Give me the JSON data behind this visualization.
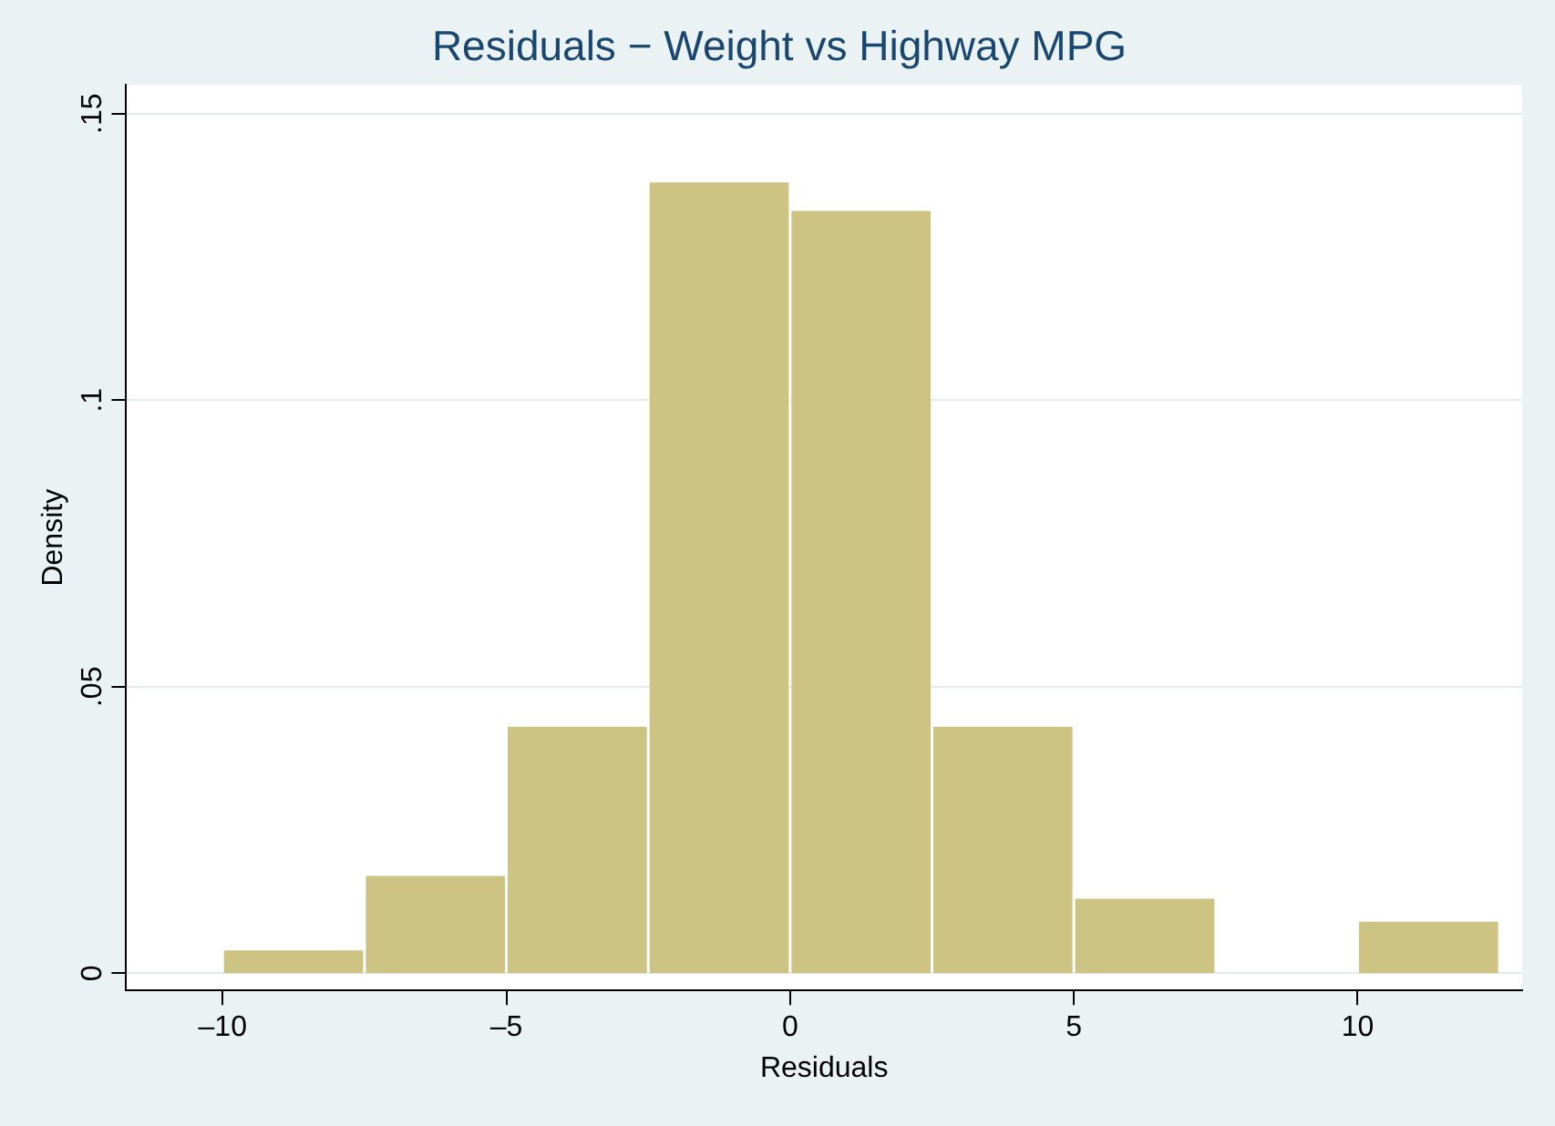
{
  "chart_data": {
    "type": "histogram",
    "title": "Residuals − Weight vs Highway MPG",
    "xlabel": "Residuals",
    "ylabel": "Density",
    "bins": [
      -10,
      -7.5,
      -5,
      -2.5,
      0,
      2.5,
      5,
      7.5,
      10,
      12.5
    ],
    "values": [
      0.004,
      0.017,
      0.043,
      0.138,
      0.133,
      0.043,
      0.013,
      0,
      0.009
    ],
    "color": "#cdc383",
    "xlim": [
      -11.7,
      12.9
    ],
    "xticks": [
      {
        "value": -10,
        "label": "–10"
      },
      {
        "value": -5,
        "label": "–5"
      },
      0,
      5,
      10
    ],
    "ylim": [
      -0.003,
      0.155
    ],
    "yticks": [
      0,
      {
        "value": 0.05,
        "label": ".05"
      },
      {
        "value": 0.1,
        "label": ".1"
      },
      {
        "value": 0.15,
        "label": ".15"
      }
    ],
    "grid": "y",
    "legend": false
  }
}
